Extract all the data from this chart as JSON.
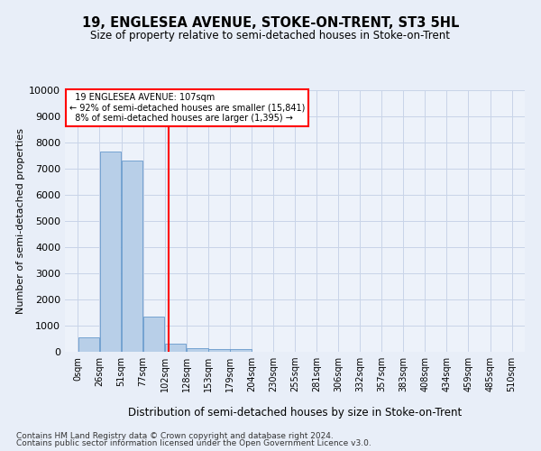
{
  "title": "19, ENGLESEA AVENUE, STOKE-ON-TRENT, ST3 5HL",
  "subtitle": "Size of property relative to semi-detached houses in Stoke-on-Trent",
  "xlabel": "Distribution of semi-detached houses by size in Stoke-on-Trent",
  "ylabel": "Number of semi-detached properties",
  "footer_line1": "Contains HM Land Registry data © Crown copyright and database right 2024.",
  "footer_line2": "Contains public sector information licensed under the Open Government Licence v3.0.",
  "bar_values": [
    550,
    7650,
    7300,
    1350,
    325,
    150,
    110,
    90,
    0,
    0,
    0,
    0,
    0,
    0,
    0,
    0,
    0,
    0,
    0,
    0
  ],
  "bin_labels": [
    "0sqm",
    "26sqm",
    "51sqm",
    "77sqm",
    "102sqm",
    "128sqm",
    "153sqm",
    "179sqm",
    "204sqm",
    "230sqm",
    "255sqm",
    "281sqm",
    "306sqm",
    "332sqm",
    "357sqm",
    "383sqm",
    "408sqm",
    "434sqm",
    "459sqm",
    "485sqm",
    "510sqm"
  ],
  "bar_color": "#b8cfe8",
  "bar_edge_color": "#6699cc",
  "property_line_x": 107,
  "percent_smaller": 92,
  "count_smaller": "15,841",
  "percent_larger": 8,
  "count_larger": "1,395",
  "annotation_label": "19 ENGLESEA AVENUE: 107sqm",
  "ylim": [
    0,
    10000
  ],
  "yticks": [
    0,
    1000,
    2000,
    3000,
    4000,
    5000,
    6000,
    7000,
    8000,
    9000,
    10000
  ],
  "grid_color": "#c8d4e8",
  "background_color": "#e8eef8",
  "plot_bg_color": "#edf2fa",
  "n_bins": 20,
  "x_max": 510
}
